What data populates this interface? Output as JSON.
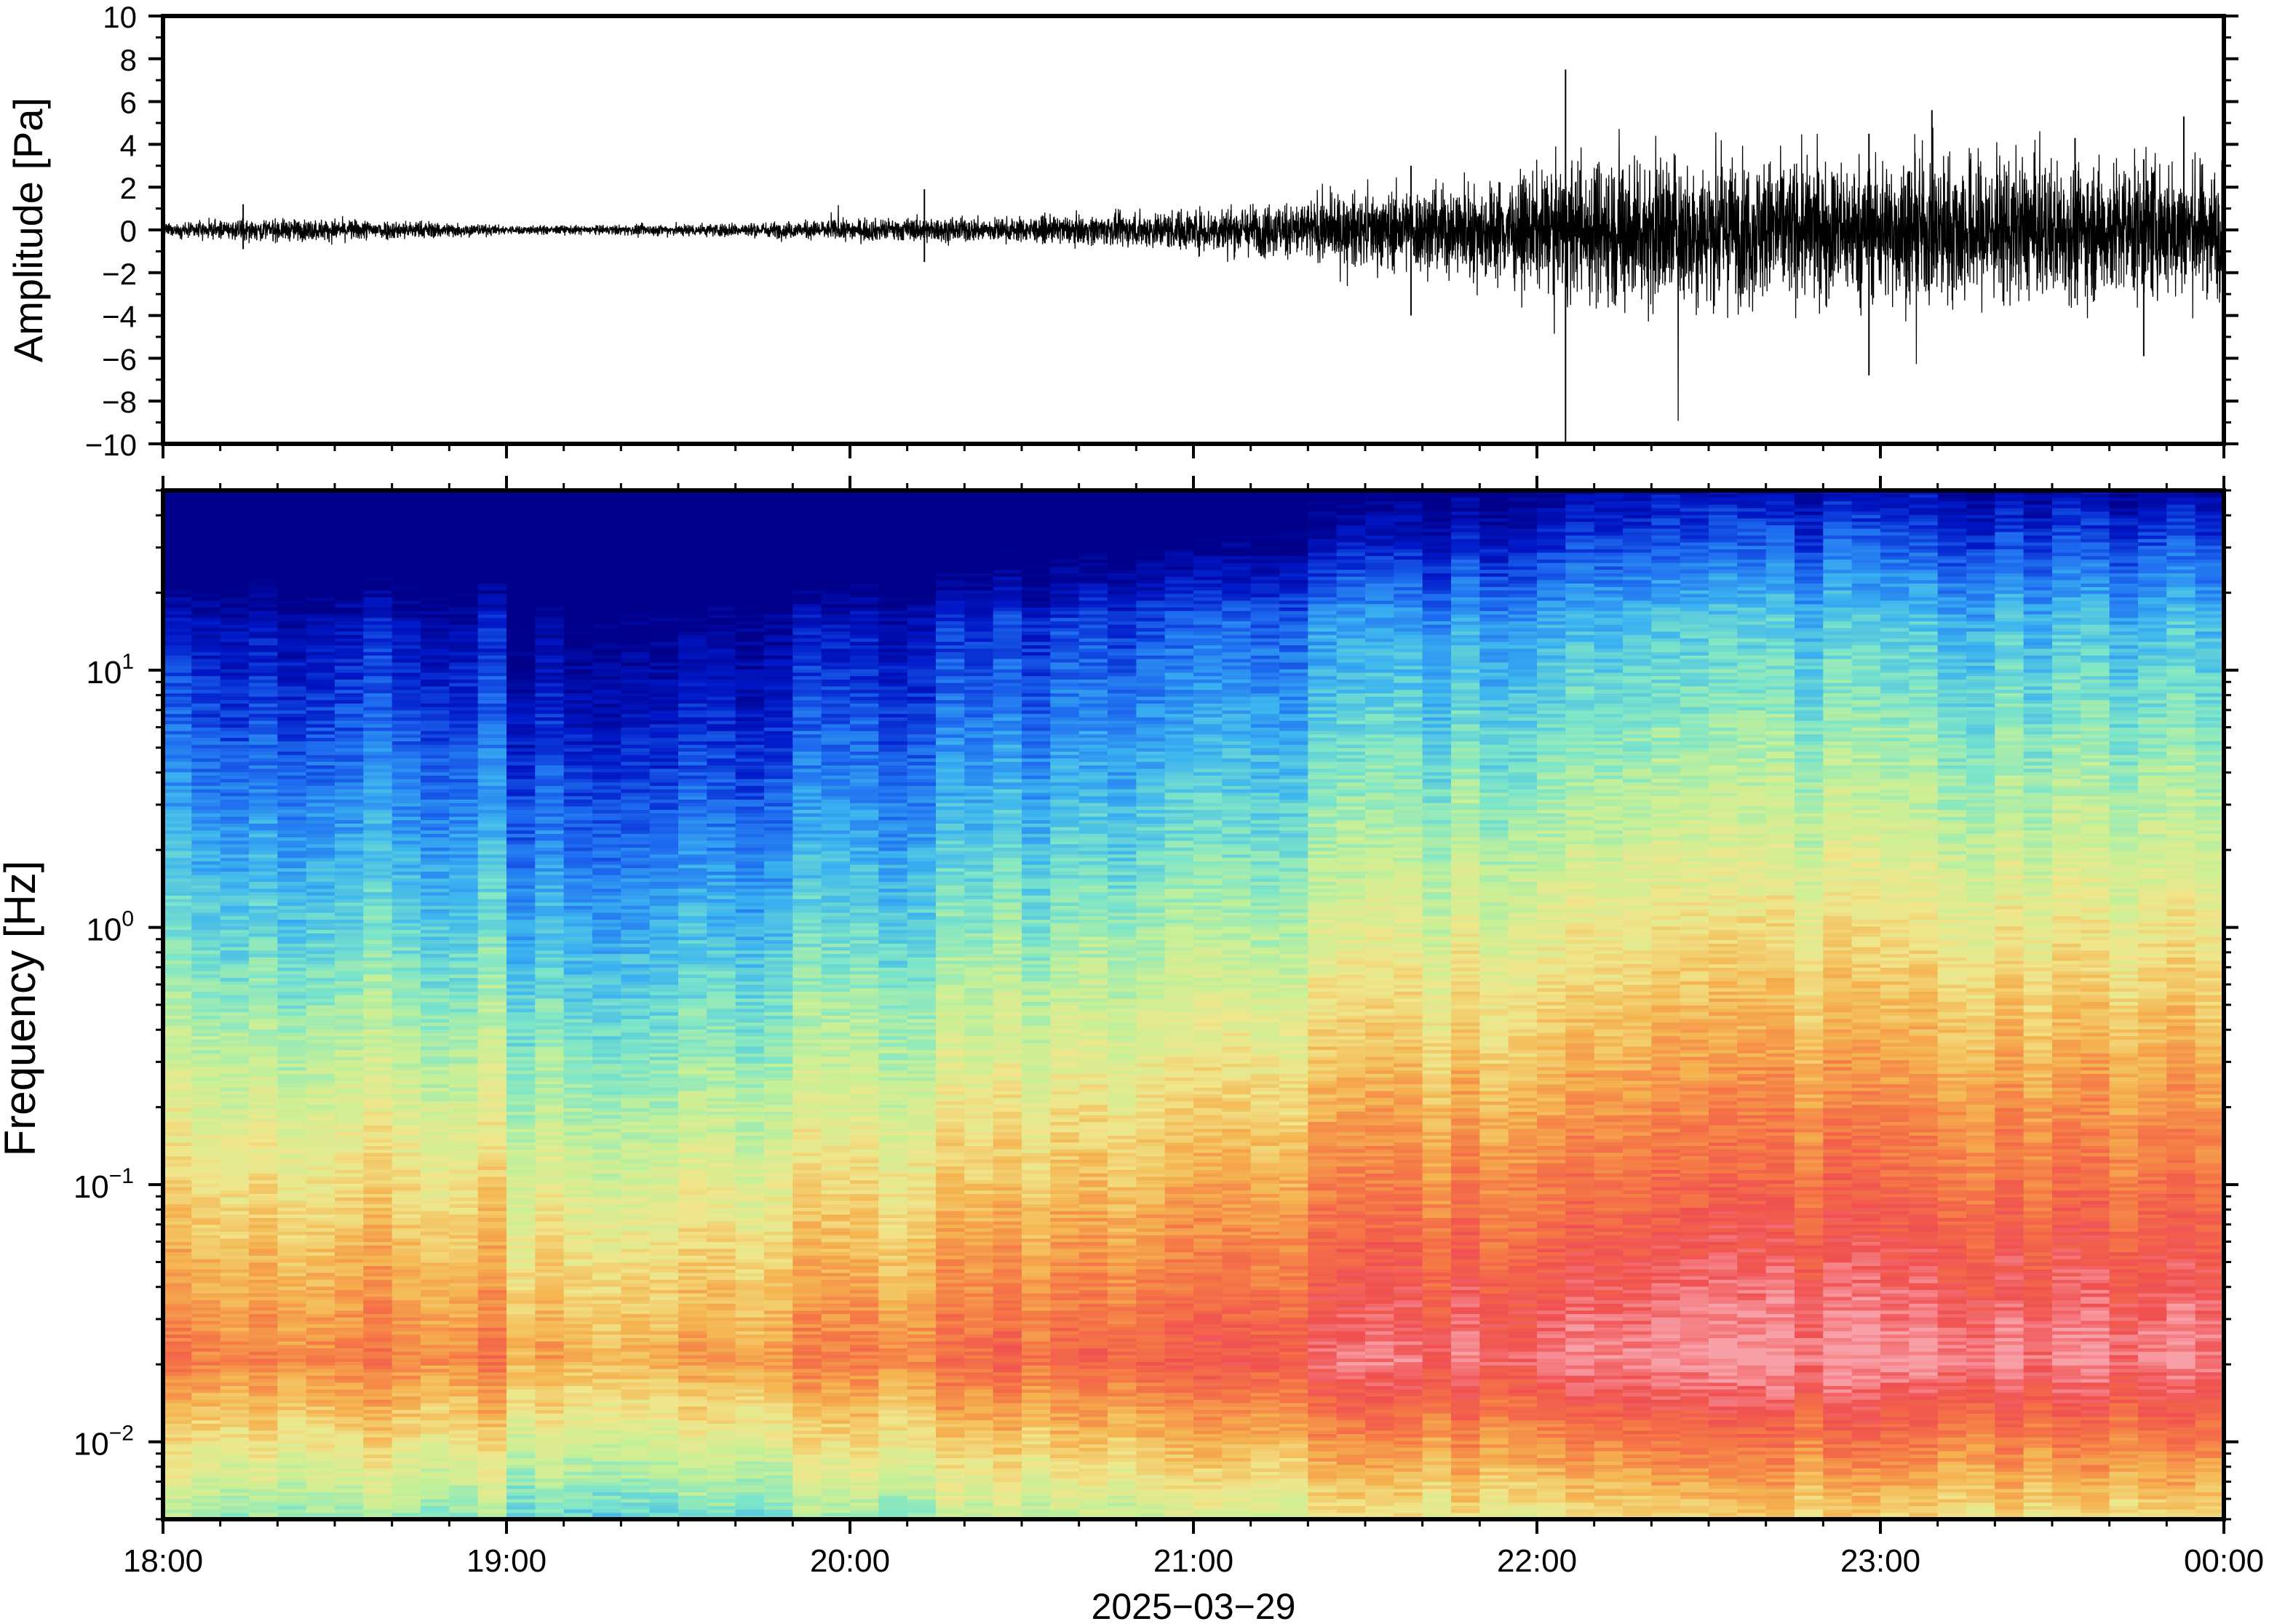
{
  "chart_data": [
    {
      "type": "line",
      "ylabel": "Amplitude [Pa]",
      "ylim": [
        -10,
        10
      ],
      "yticks": [
        {
          "v": 10,
          "label": "10"
        },
        {
          "v": 8,
          "label": "8"
        },
        {
          "v": 6,
          "label": "6"
        },
        {
          "v": 4,
          "label": "4"
        },
        {
          "v": 2,
          "label": "2"
        },
        {
          "v": 0,
          "label": "0"
        },
        {
          "v": -2,
          "label": "−2"
        },
        {
          "v": -4,
          "label": "−4"
        },
        {
          "v": -6,
          "label": "−6"
        },
        {
          "v": -8,
          "label": "−8"
        },
        {
          "v": -10,
          "label": "−10"
        }
      ],
      "xlim": [
        "2025-03-29T18:00",
        "2025-03-30T00:00"
      ],
      "envelope": {
        "time": [
          "18:00",
          "18:15",
          "18:30",
          "18:45",
          "19:00",
          "19:15",
          "19:30",
          "19:45",
          "20:00",
          "20:15",
          "20:30",
          "20:45",
          "21:00",
          "21:15",
          "21:30",
          "21:45",
          "22:00",
          "22:15",
          "22:30",
          "22:45",
          "23:00",
          "23:15",
          "23:30",
          "23:45",
          "00:00"
        ],
        "amplitude": [
          0.2,
          0.35,
          0.35,
          0.3,
          0.15,
          0.15,
          0.2,
          0.25,
          0.35,
          0.4,
          0.4,
          0.5,
          0.7,
          0.9,
          1.2,
          1.5,
          1.8,
          2.6,
          2.4,
          2.3,
          2.3,
          2.5,
          2.2,
          2.3,
          2.1
        ]
      },
      "spikes": [
        {
          "time": "18:14",
          "min": -0.9,
          "max": 1.2
        },
        {
          "time": "20:13",
          "min": -1.5,
          "max": 1.9
        },
        {
          "time": "21:38",
          "min": -4.0,
          "max": 3.0
        },
        {
          "time": "22:05",
          "min": -10.0,
          "max": 7.5
        },
        {
          "time": "22:58",
          "min": -6.8,
          "max": 4.5
        },
        {
          "time": "23:09",
          "min": -2.5,
          "max": 5.6
        },
        {
          "time": "23:34",
          "min": -3.2,
          "max": 4.3
        },
        {
          "time": "23:46",
          "min": -5.9,
          "max": 3.3
        },
        {
          "time": "23:53",
          "min": -1.5,
          "max": 5.3
        }
      ]
    },
    {
      "type": "heatmap",
      "title": "",
      "ylabel": "Frequency [Hz]",
      "xlabel": "2025−03−29",
      "yscale": "log",
      "ylim": [
        0.005,
        50
      ],
      "yticks": [
        {
          "v": 0.01,
          "base": "10",
          "exp": "−2"
        },
        {
          "v": 0.1,
          "base": "10",
          "exp": "−1"
        },
        {
          "v": 1,
          "base": "10",
          "exp": "0"
        },
        {
          "v": 10,
          "base": "10",
          "exp": "1"
        }
      ],
      "xlim": [
        "2025-03-29T18:00",
        "2025-03-30T00:00"
      ],
      "xticks": [
        "18:00",
        "19:00",
        "20:00",
        "21:00",
        "22:00",
        "23:00",
        "00:00"
      ],
      "colormap": "rainbow (dark blue low power → pink high power)",
      "colors": [
        "#00008a",
        "#0018c8",
        "#1e6cf0",
        "#3cb4f0",
        "#7ee6c8",
        "#c8f096",
        "#f0e68c",
        "#f5b450",
        "#f57846",
        "#f05050",
        "#f8a0a8"
      ]
    }
  ]
}
